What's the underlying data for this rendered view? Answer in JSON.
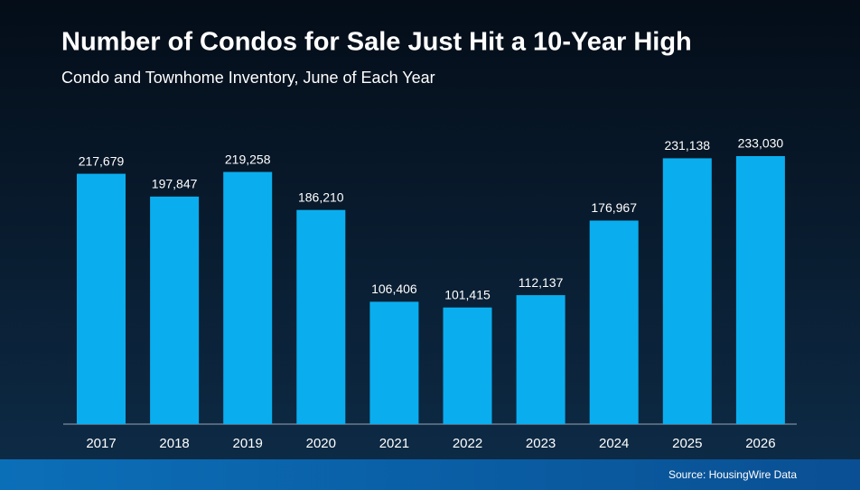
{
  "chart_data": {
    "type": "bar",
    "title": "Number of Condos for Sale Just Hit a 10-Year High",
    "subtitle": "Condo and Townhome Inventory, June of Each Year",
    "source": "Source: HousingWire Data",
    "categories": [
      "2017",
      "2018",
      "2019",
      "2020",
      "2021",
      "2022",
      "2023",
      "2024",
      "2025",
      "2026"
    ],
    "values": [
      217679,
      197847,
      219258,
      186210,
      106406,
      101415,
      112137,
      176967,
      231138,
      233030
    ],
    "value_labels": [
      "217,679",
      "197,847",
      "219,258",
      "186,210",
      "106,406",
      "101,415",
      "112,137",
      "176,967",
      "231,138",
      "233,030"
    ],
    "color": "#0aaeef"
  }
}
